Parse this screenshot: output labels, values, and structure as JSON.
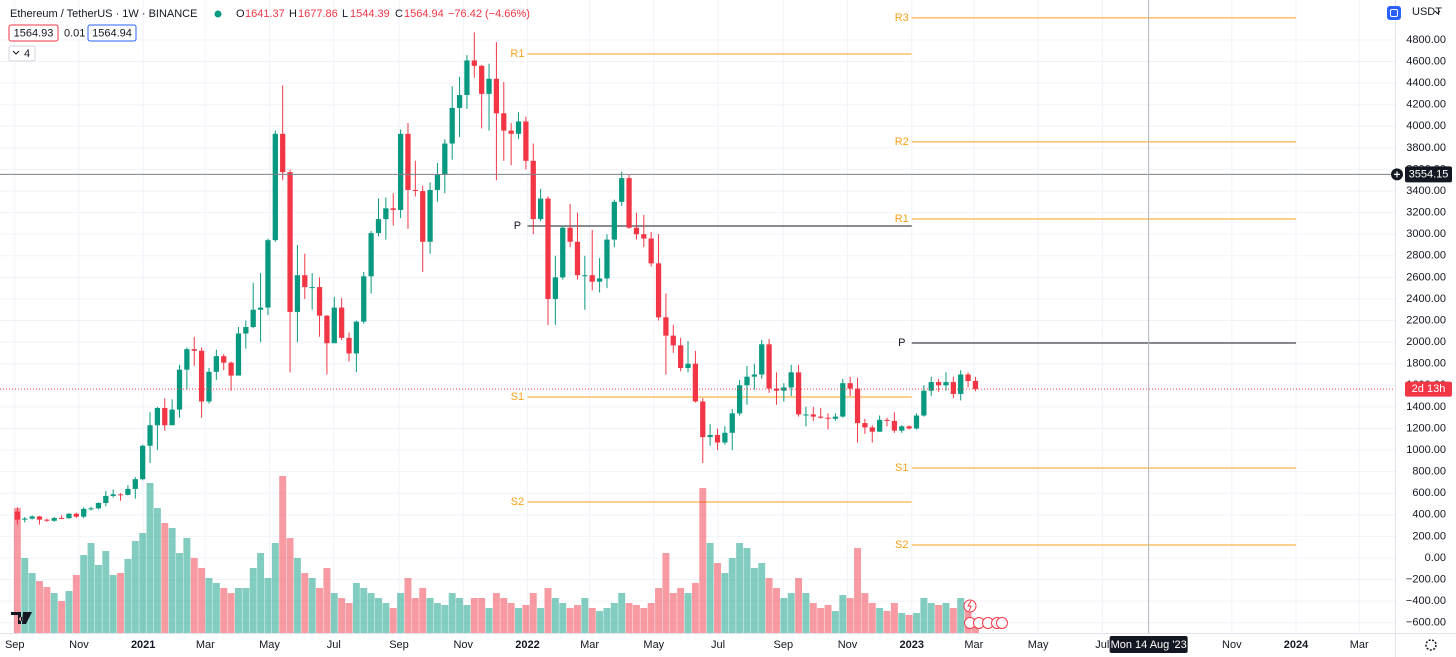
{
  "chart_data": {
    "type": "candlestick",
    "title": "Ethereum / TetherUS · 1W · BINANCE",
    "ohlc_labels": [
      "O",
      "H",
      "L",
      "C"
    ],
    "change": {
      "value": -76.42,
      "label": "−76.42"
    },
    "change_pct": {
      "value": -4.66,
      "label": "(−4.66%)"
    },
    "bid": 1564.93,
    "spread": 0.01,
    "ask": 1564.94,
    "indicator_count": 4,
    "currency": "USDT",
    "countdown": "2d 13h",
    "up_color": "#089981",
    "down_color": "#f23645",
    "xlim": [
      "2020-08-18",
      "2024-04-04"
    ],
    "ylim": [
      -695,
      5170
    ],
    "volume_lim": [
      0,
      160
    ],
    "grid": true,
    "xticks": [
      {
        "value": "2020-09",
        "label": "Sep"
      },
      {
        "value": "2020-11",
        "label": "Nov"
      },
      {
        "value": "2021-01",
        "label": "2021"
      },
      {
        "value": "2021-03",
        "label": "Mar"
      },
      {
        "value": "2021-05",
        "label": "May"
      },
      {
        "value": "2021-07",
        "label": "Jul"
      },
      {
        "value": "2021-09",
        "label": "Sep"
      },
      {
        "value": "2021-11",
        "label": "Nov"
      },
      {
        "value": "2022-01",
        "label": "2022"
      },
      {
        "value": "2022-03",
        "label": "Mar"
      },
      {
        "value": "2022-05",
        "label": "May"
      },
      {
        "value": "2022-07",
        "label": "Jul"
      },
      {
        "value": "2022-09",
        "label": "Sep"
      },
      {
        "value": "2022-11",
        "label": "Nov"
      },
      {
        "value": "2023-01",
        "label": "2023"
      },
      {
        "value": "2023-03",
        "label": "Mar"
      },
      {
        "value": "2023-05",
        "label": "May"
      },
      {
        "value": "2023-07",
        "label": "Jul"
      },
      {
        "value": "2023-11",
        "label": "Nov"
      },
      {
        "value": "2024-01",
        "label": "2024"
      },
      {
        "value": "2024-03",
        "label": "Mar"
      }
    ],
    "yticks": [
      {
        "value": 4800,
        "label": "4800.00"
      },
      {
        "value": 4600,
        "label": "4600.00"
      },
      {
        "value": 4400,
        "label": "4400.00"
      },
      {
        "value": 4200,
        "label": "4200.00"
      },
      {
        "value": 4000,
        "label": "4000.00"
      },
      {
        "value": 3800,
        "label": "3800.00"
      },
      {
        "value": 3600,
        "label": "3600.00"
      },
      {
        "value": 3400,
        "label": "3400.00"
      },
      {
        "value": 3200,
        "label": "3200.00"
      },
      {
        "value": 3000,
        "label": "3000.00"
      },
      {
        "value": 2800,
        "label": "2800.00"
      },
      {
        "value": 2600,
        "label": "2600.00"
      },
      {
        "value": 2400,
        "label": "2400.00"
      },
      {
        "value": 2200,
        "label": "2200.00"
      },
      {
        "value": 2000,
        "label": "2000.00"
      },
      {
        "value": 1800,
        "label": "1800.00"
      },
      {
        "value": 1600,
        "label": "1600.00"
      },
      {
        "value": 1400,
        "label": "1400.00"
      },
      {
        "value": 1200,
        "label": "1200.00"
      },
      {
        "value": 1000,
        "label": "1000.00"
      },
      {
        "value": 800,
        "label": "800.00"
      },
      {
        "value": 600,
        "label": "600.00"
      },
      {
        "value": 400,
        "label": "400.00"
      },
      {
        "value": 200,
        "label": "200.00"
      },
      {
        "value": 0,
        "label": "0.00"
      },
      {
        "value": -200,
        "label": "−200.00"
      },
      {
        "value": -400,
        "label": "−400.00"
      },
      {
        "value": -600,
        "label": "−600.00"
      }
    ],
    "x": [
      "2020-08-31",
      "2020-09-07",
      "2020-09-14",
      "2020-09-21",
      "2020-09-28",
      "2020-10-05",
      "2020-10-12",
      "2020-10-19",
      "2020-10-26",
      "2020-11-02",
      "2020-11-09",
      "2020-11-16",
      "2020-11-23",
      "2020-11-30",
      "2020-12-07",
      "2020-12-14",
      "2020-12-21",
      "2020-12-28",
      "2021-01-04",
      "2021-01-11",
      "2021-01-18",
      "2021-01-25",
      "2021-02-01",
      "2021-02-08",
      "2021-02-15",
      "2021-02-22",
      "2021-03-01",
      "2021-03-08",
      "2021-03-15",
      "2021-03-22",
      "2021-03-29",
      "2021-04-05",
      "2021-04-12",
      "2021-04-19",
      "2021-04-26",
      "2021-05-03",
      "2021-05-10",
      "2021-05-17",
      "2021-05-24",
      "2021-05-31",
      "2021-06-07",
      "2021-06-14",
      "2021-06-21",
      "2021-06-28",
      "2021-07-05",
      "2021-07-12",
      "2021-07-19",
      "2021-07-26",
      "2021-08-02",
      "2021-08-09",
      "2021-08-16",
      "2021-08-23",
      "2021-08-30",
      "2021-09-06",
      "2021-09-13",
      "2021-09-20",
      "2021-09-27",
      "2021-10-04",
      "2021-10-11",
      "2021-10-18",
      "2021-10-25",
      "2021-11-01",
      "2021-11-08",
      "2021-11-15",
      "2021-11-22",
      "2021-11-29",
      "2021-12-06",
      "2021-12-13",
      "2021-12-20",
      "2021-12-27",
      "2022-01-03",
      "2022-01-10",
      "2022-01-17",
      "2022-01-24",
      "2022-01-31",
      "2022-02-07",
      "2022-02-14",
      "2022-02-21",
      "2022-02-28",
      "2022-03-07",
      "2022-03-14",
      "2022-03-21",
      "2022-03-28",
      "2022-04-04",
      "2022-04-11",
      "2022-04-18",
      "2022-04-25",
      "2022-05-02",
      "2022-05-09",
      "2022-05-16",
      "2022-05-23",
      "2022-05-30",
      "2022-06-06",
      "2022-06-13",
      "2022-06-20",
      "2022-06-27",
      "2022-07-04",
      "2022-07-11",
      "2022-07-18",
      "2022-07-25",
      "2022-08-01",
      "2022-08-08",
      "2022-08-15",
      "2022-08-22",
      "2022-08-29",
      "2022-09-05",
      "2022-09-12",
      "2022-09-19",
      "2022-09-26",
      "2022-10-03",
      "2022-10-10",
      "2022-10-17",
      "2022-10-24",
      "2022-10-31",
      "2022-11-07",
      "2022-11-14",
      "2022-11-21",
      "2022-11-28",
      "2022-12-05",
      "2022-12-12",
      "2022-12-19",
      "2022-12-26",
      "2023-01-02",
      "2023-01-09",
      "2023-01-16",
      "2023-01-23",
      "2023-01-30",
      "2023-02-06",
      "2023-02-13",
      "2023-02-20",
      "2023-02-27"
    ],
    "candles": [
      [
        430,
        470,
        310,
        355
      ],
      [
        355,
        380,
        330,
        365
      ],
      [
        365,
        395,
        355,
        385
      ],
      [
        385,
        390,
        310,
        355
      ],
      [
        355,
        365,
        335,
        345
      ],
      [
        345,
        380,
        335,
        370
      ],
      [
        370,
        395,
        365,
        368
      ],
      [
        368,
        415,
        365,
        410
      ],
      [
        410,
        420,
        370,
        383
      ],
      [
        383,
        470,
        370,
        455
      ],
      [
        455,
        475,
        440,
        460
      ],
      [
        460,
        515,
        450,
        510
      ],
      [
        510,
        620,
        480,
        575
      ],
      [
        575,
        635,
        560,
        590
      ],
      [
        590,
        600,
        530,
        585
      ],
      [
        585,
        675,
        580,
        640
      ],
      [
        640,
        750,
        550,
        730
      ],
      [
        730,
        1050,
        720,
        1040
      ],
      [
        1040,
        1350,
        880,
        1230
      ],
      [
        1230,
        1400,
        1000,
        1390
      ],
      [
        1390,
        1480,
        1180,
        1230
      ],
      [
        1230,
        1470,
        1230,
        1375
      ],
      [
        1375,
        1790,
        1300,
        1745
      ],
      [
        1745,
        1950,
        1560,
        1935
      ],
      [
        1935,
        2050,
        1780,
        1920
      ],
      [
        1920,
        1950,
        1300,
        1450
      ],
      [
        1450,
        1760,
        1430,
        1725
      ],
      [
        1725,
        1930,
        1650,
        1870
      ],
      [
        1870,
        1890,
        1740,
        1810
      ],
      [
        1810,
        1820,
        1550,
        1690
      ],
      [
        1690,
        2140,
        1690,
        2080
      ],
      [
        2080,
        2200,
        1940,
        2140
      ],
      [
        2140,
        2550,
        2130,
        2300
      ],
      [
        2300,
        2640,
        2000,
        2320
      ],
      [
        2320,
        2960,
        2250,
        2945
      ],
      [
        2945,
        3960,
        2930,
        3930
      ],
      [
        3930,
        4380,
        3500,
        3575
      ],
      [
        3575,
        3600,
        1720,
        2280
      ],
      [
        2280,
        2900,
        2000,
        2620
      ],
      [
        2620,
        2820,
        2400,
        2510
      ],
      [
        2510,
        2640,
        2300,
        2510
      ],
      [
        2510,
        2600,
        2050,
        2245
      ],
      [
        2245,
        2250,
        1700,
        1990
      ],
      [
        1990,
        2420,
        1990,
        2320
      ],
      [
        2320,
        2410,
        2020,
        2040
      ],
      [
        2040,
        2090,
        1820,
        1895
      ],
      [
        1895,
        2200,
        1720,
        2190
      ],
      [
        2190,
        2650,
        2170,
        2610
      ],
      [
        2610,
        3030,
        2450,
        3010
      ],
      [
        3010,
        3330,
        2980,
        3140
      ],
      [
        3140,
        3340,
        2950,
        3240
      ],
      [
        3240,
        3380,
        3080,
        3225
      ],
      [
        3225,
        3970,
        3150,
        3930
      ],
      [
        3930,
        4030,
        3050,
        3410
      ],
      [
        3410,
        3680,
        3350,
        3400
      ],
      [
        3400,
        3450,
        2650,
        2930
      ],
      [
        2930,
        3480,
        2820,
        3410
      ],
      [
        3410,
        3660,
        3300,
        3550
      ],
      [
        3550,
        3880,
        3380,
        3840
      ],
      [
        3840,
        4370,
        3690,
        4170
      ],
      [
        4170,
        4460,
        3900,
        4290
      ],
      [
        4290,
        4660,
        4160,
        4610
      ],
      [
        4610,
        4870,
        4450,
        4560
      ],
      [
        4560,
        4570,
        3980,
        4300
      ],
      [
        4300,
        4580,
        3960,
        4440
      ],
      [
        4440,
        4780,
        3500,
        4120
      ],
      [
        4120,
        4410,
        3680,
        3960
      ],
      [
        3960,
        4030,
        3640,
        3930
      ],
      [
        3930,
        4130,
        3880,
        4045
      ],
      [
        4045,
        4090,
        3600,
        3680
      ],
      [
        3680,
        3840,
        3000,
        3140
      ],
      [
        3140,
        3420,
        3120,
        3330
      ],
      [
        3330,
        3350,
        2160,
        2400
      ],
      [
        2400,
        2800,
        2160,
        2600
      ],
      [
        2600,
        3080,
        2580,
        3060
      ],
      [
        3060,
        3280,
        2880,
        2930
      ],
      [
        2930,
        3200,
        2580,
        2620
      ],
      [
        2620,
        2800,
        2300,
        2620
      ],
      [
        2620,
        3040,
        2480,
        2560
      ],
      [
        2560,
        2780,
        2460,
        2590
      ],
      [
        2590,
        3000,
        2500,
        2950
      ],
      [
        2950,
        3320,
        2880,
        3300
      ],
      [
        3300,
        3580,
        3260,
        3520
      ],
      [
        3520,
        3550,
        3050,
        3060
      ],
      [
        3060,
        3200,
        2950,
        3000
      ],
      [
        3000,
        3180,
        2880,
        2960
      ],
      [
        2960,
        3020,
        2700,
        2730
      ],
      [
        2730,
        3000,
        2200,
        2230
      ],
      [
        2230,
        2450,
        1700,
        2060
      ],
      [
        2060,
        2160,
        1900,
        1970
      ],
      [
        1970,
        2040,
        1730,
        1760
      ],
      [
        1760,
        2010,
        1720,
        1800
      ],
      [
        1800,
        1920,
        1440,
        1450
      ],
      [
        1450,
        1480,
        880,
        1120
      ],
      [
        1120,
        1240,
        1040,
        1140
      ],
      [
        1140,
        1200,
        1000,
        1070
      ],
      [
        1070,
        1220,
        1050,
        1160
      ],
      [
        1160,
        1380,
        1000,
        1340
      ],
      [
        1340,
        1650,
        1320,
        1600
      ],
      [
        1600,
        1780,
        1420,
        1680
      ],
      [
        1680,
        1800,
        1560,
        1700
      ],
      [
        1700,
        2020,
        1660,
        1980
      ],
      [
        1980,
        2030,
        1530,
        1570
      ],
      [
        1570,
        1720,
        1420,
        1550
      ],
      [
        1550,
        1620,
        1450,
        1580
      ],
      [
        1580,
        1790,
        1500,
        1720
      ],
      [
        1720,
        1790,
        1310,
        1330
      ],
      [
        1330,
        1400,
        1220,
        1330
      ],
      [
        1330,
        1400,
        1270,
        1310
      ],
      [
        1310,
        1390,
        1290,
        1300
      ],
      [
        1300,
        1340,
        1190,
        1290
      ],
      [
        1290,
        1340,
        1270,
        1310
      ],
      [
        1310,
        1660,
        1300,
        1620
      ],
      [
        1620,
        1680,
        1500,
        1570
      ],
      [
        1570,
        1670,
        1070,
        1250
      ],
      [
        1250,
        1290,
        1150,
        1210
      ],
      [
        1210,
        1230,
        1070,
        1170
      ],
      [
        1170,
        1320,
        1170,
        1280
      ],
      [
        1280,
        1300,
        1220,
        1270
      ],
      [
        1270,
        1350,
        1160,
        1180
      ],
      [
        1180,
        1230,
        1160,
        1220
      ],
      [
        1220,
        1230,
        1190,
        1200
      ],
      [
        1200,
        1340,
        1190,
        1320
      ],
      [
        1320,
        1600,
        1310,
        1550
      ],
      [
        1550,
        1680,
        1500,
        1630
      ],
      [
        1630,
        1660,
        1540,
        1600
      ],
      [
        1600,
        1720,
        1550,
        1630
      ],
      [
        1630,
        1680,
        1480,
        1520
      ],
      [
        1520,
        1740,
        1460,
        1700
      ],
      [
        1700,
        1720,
        1580,
        1640
      ],
      [
        1641.37,
        1677.86,
        1544.39,
        1564.94
      ]
    ],
    "volume": [
      125,
      75,
      60,
      52,
      46,
      40,
      32,
      42,
      58,
      78,
      90,
      68,
      82,
      58,
      60,
      74,
      92,
      100,
      150,
      125,
      110,
      105,
      80,
      95,
      75,
      65,
      55,
      50,
      45,
      40,
      45,
      45,
      65,
      80,
      55,
      90,
      157,
      95,
      75,
      60,
      55,
      45,
      65,
      40,
      35,
      30,
      50,
      45,
      40,
      35,
      30,
      25,
      40,
      55,
      35,
      45,
      35,
      30,
      28,
      40,
      35,
      28,
      35,
      35,
      25,
      40,
      35,
      30,
      25,
      28,
      40,
      25,
      45,
      35,
      30,
      25,
      28,
      35,
      25,
      22,
      25,
      30,
      40,
      30,
      28,
      25,
      30,
      45,
      80,
      40,
      45,
      40,
      50,
      145,
      90,
      70,
      60,
      75,
      90,
      85,
      65,
      70,
      55,
      45,
      35,
      40,
      55,
      40,
      30,
      25,
      28,
      22,
      38,
      35,
      85,
      40,
      30,
      25,
      22,
      30,
      20,
      18,
      20,
      35,
      30,
      28,
      30,
      25,
      35,
      25,
      12
    ],
    "pivots": [
      {
        "start": "2022-01",
        "end": "2023-01",
        "levels": [
          {
            "label": "R1",
            "value": 4670,
            "color": "#f7a21b"
          },
          {
            "label": "P",
            "value": 3076,
            "color": "#131722"
          },
          {
            "label": "S1",
            "value": 1492,
            "color": "#f7a21b"
          },
          {
            "label": "S2",
            "value": 519,
            "color": "#f7a21b"
          }
        ]
      },
      {
        "start": "2023-01",
        "end": "2024-01",
        "levels": [
          {
            "label": "R3",
            "value": 5004,
            "color": "#f7a21b"
          },
          {
            "label": "R2",
            "value": 3855,
            "color": "#f7a21b"
          },
          {
            "label": "R1",
            "value": 3141,
            "color": "#f7a21b"
          },
          {
            "label": "P",
            "value": 1992,
            "color": "#131722"
          },
          {
            "label": "S1",
            "value": 834,
            "color": "#f7a21b"
          },
          {
            "label": "S2",
            "value": 120,
            "color": "#f7a21b"
          }
        ]
      }
    ],
    "crosshair": {
      "price": 3554.15,
      "date": "2023-08-14",
      "date_label": "Mon 14 Aug '23"
    }
  }
}
